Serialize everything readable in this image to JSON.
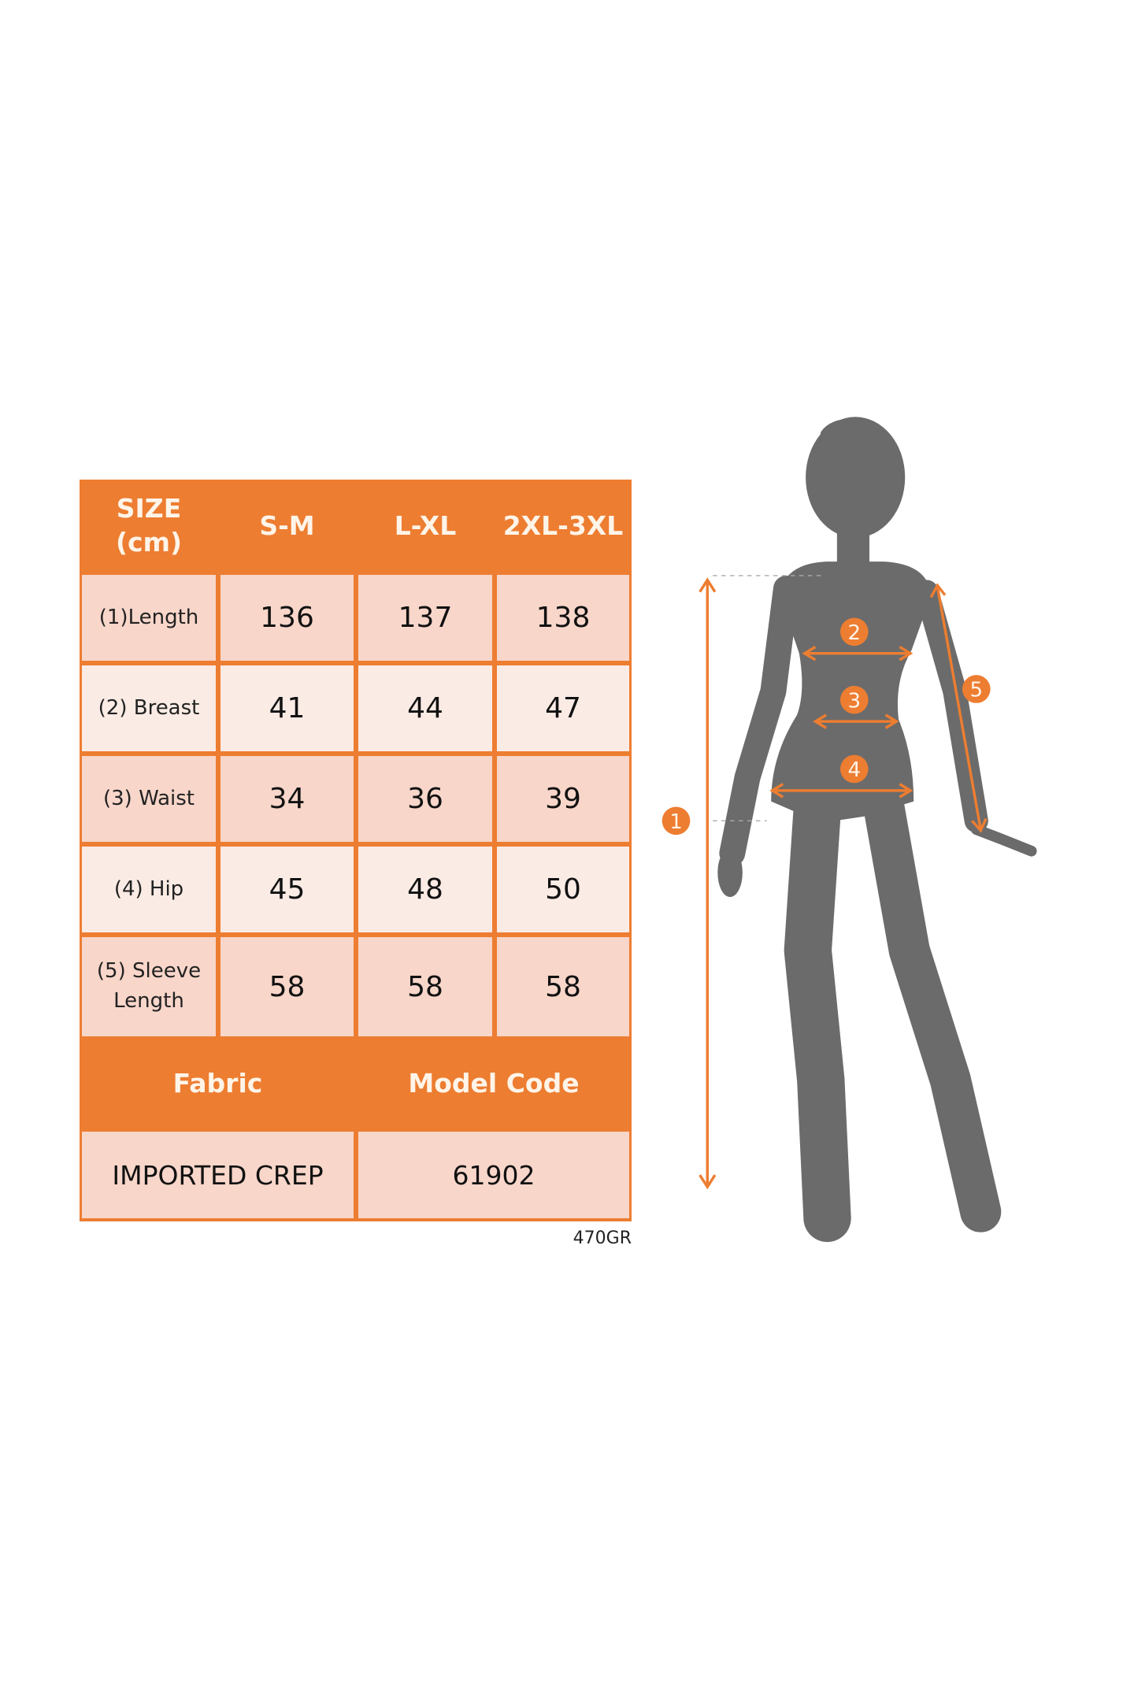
{
  "table": {
    "header": {
      "size_label": "SIZE\n(cm)",
      "sizes": [
        "S-M",
        "L-XL",
        "2XL-3XL"
      ]
    },
    "rows": [
      {
        "label": "(1)Length",
        "values": [
          "136",
          "137",
          "138"
        ]
      },
      {
        "label": "(2) Breast",
        "values": [
          "41",
          "44",
          "47"
        ]
      },
      {
        "label": "(3) Waist",
        "values": [
          "34",
          "36",
          "39"
        ]
      },
      {
        "label": "(4) Hip",
        "values": [
          "45",
          "48",
          "50"
        ]
      },
      {
        "label": "(5) Sleeve\nLength",
        "values": [
          "58",
          "58",
          "58"
        ]
      }
    ],
    "fabric_header": "Fabric",
    "model_code_header": "Model Code",
    "fabric_value": "IMPORTED CREP",
    "model_code_value": "61902"
  },
  "product_code": "470GR",
  "figure": {
    "markers": [
      "1",
      "2",
      "3",
      "4",
      "5"
    ],
    "silhouette_color": "#6b6b6b",
    "accent_color": "#ed7d31"
  },
  "colors": {
    "header": "#ed7d31",
    "cell_dark": "#f8d6ca",
    "cell_light": "#fbebe5"
  }
}
